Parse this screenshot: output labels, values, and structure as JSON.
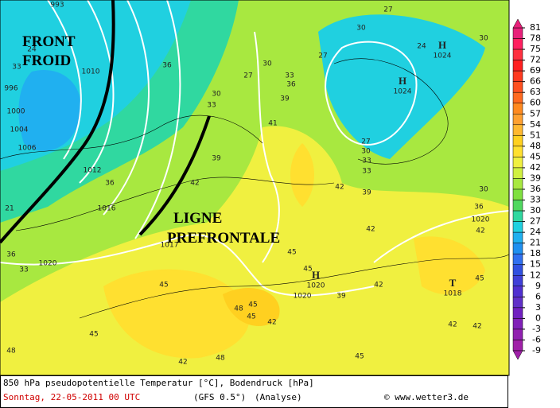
{
  "annotations": [
    "FRONT",
    "FROID",
    "LIGNE",
    "PREFRONTALE"
  ],
  "pressure_centers": [
    {
      "letter": "H",
      "value": "1024"
    },
    {
      "letter": "H",
      "value": "1024"
    },
    {
      "letter": "H",
      "value": "1020"
    },
    {
      "letter": "T",
      "value": "1018"
    }
  ],
  "isobar_labels": [
    "993",
    "996",
    "1000",
    "1004",
    "1006",
    "1010",
    "1012",
    "1016",
    "1020",
    "1017",
    "1020",
    "1020"
  ],
  "temperature_labels": [
    "24",
    "33",
    "36",
    "30",
    "33",
    "27",
    "30",
    "33",
    "36",
    "39",
    "41",
    "27",
    "27",
    "30",
    "24",
    "30",
    "27",
    "30",
    "33",
    "33",
    "39",
    "42",
    "39",
    "42",
    "45",
    "42",
    "45",
    "42",
    "39",
    "45",
    "45",
    "48",
    "36",
    "33",
    "36",
    "21",
    "48",
    "45",
    "42",
    "48",
    "45",
    "42",
    "36",
    "30",
    "42",
    "45",
    "42",
    "42",
    "45"
  ],
  "scale": {
    "ticks": [
      81,
      78,
      75,
      72,
      69,
      66,
      63,
      60,
      57,
      54,
      51,
      48,
      45,
      42,
      39,
      36,
      33,
      30,
      27,
      24,
      21,
      18,
      15,
      12,
      9,
      6,
      3,
      0,
      -3,
      -6,
      -9
    ],
    "colors": [
      "#e8207a",
      "#ff2060",
      "#ff3040",
      "#ff2020",
      "#ff3a20",
      "#ff5020",
      "#ff6a20",
      "#ff8a20",
      "#ffa030",
      "#ffb830",
      "#ffd020",
      "#ffe030",
      "#f0f040",
      "#d0f040",
      "#a8e840",
      "#80e040",
      "#50d860",
      "#30d8a0",
      "#20d0e0",
      "#20b0f0",
      "#2090f0",
      "#3070f0",
      "#3050e0",
      "#4040d8",
      "#5030d0",
      "#6030c8",
      "#7020c0",
      "#8020b8",
      "#9020b0",
      "#a020a8"
    ]
  },
  "footer": {
    "title": "850 hPa pseudopotentielle Temperatur [°C], Bodendruck [hPa]",
    "date": "Sonntag, 22-05-2011  00 UTC",
    "model": "(GFS 0.5°)",
    "mode": "(Analyse)",
    "copyright": "© www.wetter3.de"
  }
}
